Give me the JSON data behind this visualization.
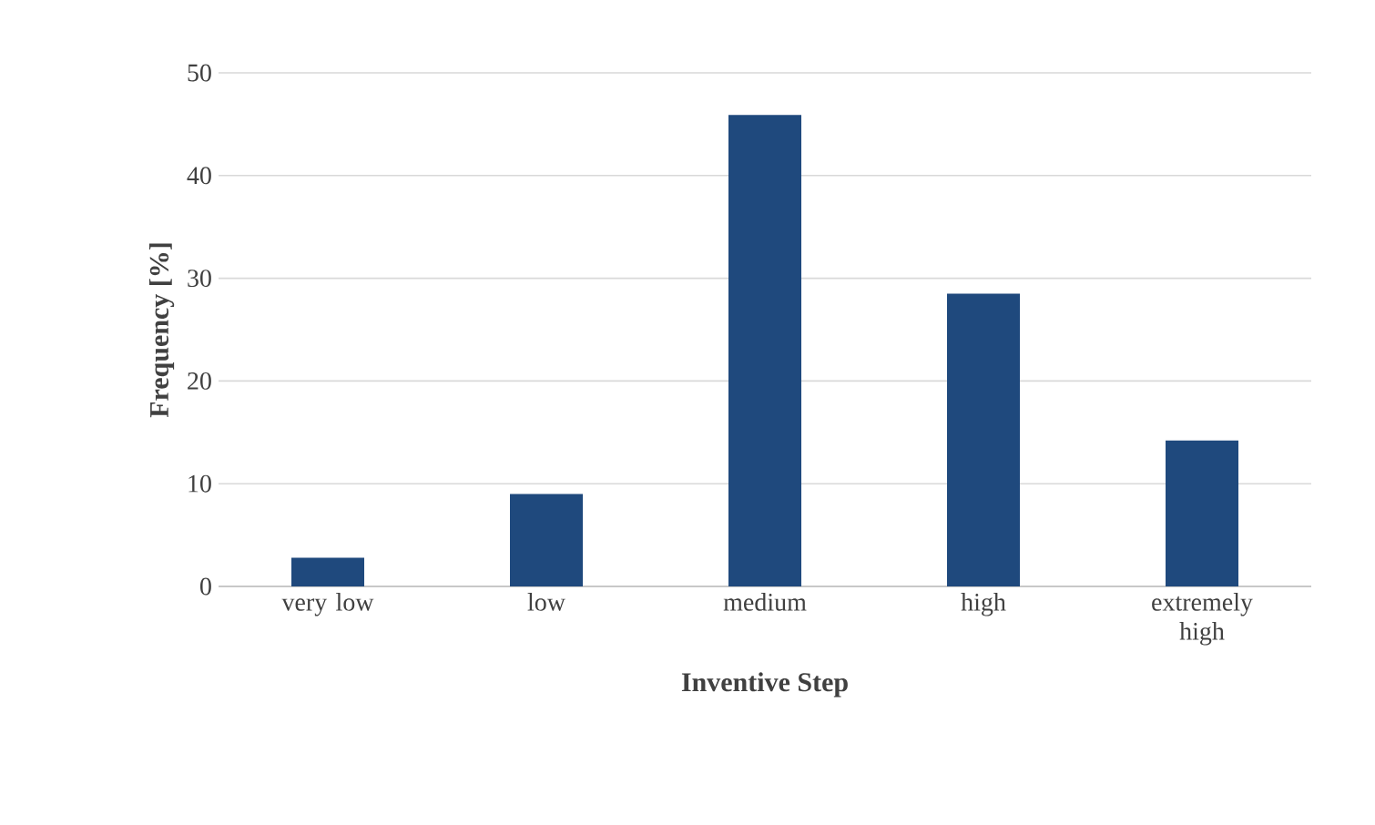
{
  "chart_data": {
    "type": "bar",
    "xlabel": "Inventive Step",
    "ylabel": "Frequency [%]",
    "categories": [
      "very low",
      "low",
      "medium",
      "high",
      "extremely high"
    ],
    "values": [
      2.8,
      9.0,
      45.9,
      28.5,
      14.2
    ],
    "color": "#1f497d",
    "ylim": [
      0,
      50
    ],
    "yticks": [
      0,
      10,
      20,
      30,
      40,
      50
    ],
    "grid": "y"
  }
}
